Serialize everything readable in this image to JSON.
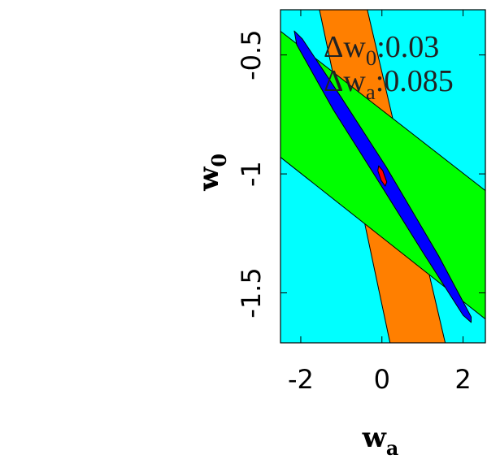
{
  "chart_data": {
    "type": "region",
    "xlabel": {
      "text": "w",
      "subscript": "a"
    },
    "ylabel": {
      "text": "w",
      "subscript": "0"
    },
    "xlim": [
      -2.5,
      2.55
    ],
    "ylim": [
      -1.71,
      -0.31
    ],
    "xticks": [
      -2,
      0,
      2
    ],
    "yticks": [
      -1.5,
      -1,
      -0.5
    ],
    "background": "#00ffff",
    "regions": [
      {
        "color": "#ff7f00",
        "points": [
          [
            -1.54,
            -0.31
          ],
          [
            -0.36,
            -0.31
          ],
          [
            1.56,
            -1.71
          ],
          [
            0.2,
            -1.71
          ]
        ]
      },
      {
        "color": "#00ff00",
        "points": [
          [
            -2.5,
            -0.4
          ],
          [
            2.55,
            -1.07
          ],
          [
            2.55,
            -1.61
          ],
          [
            -2.5,
            -0.93
          ]
        ]
      },
      {
        "color": "#0000ff",
        "points": [
          [
            -2.16,
            -0.399
          ],
          [
            -1.96,
            -0.433
          ],
          [
            -1.0,
            -0.679
          ],
          [
            0.1,
            -0.969
          ],
          [
            1.4,
            -1.345
          ],
          [
            2.2,
            -1.601
          ],
          [
            2.2,
            -1.624
          ],
          [
            2.0,
            -1.594
          ],
          [
            1.0,
            -1.327
          ],
          [
            -0.1,
            -1.027
          ],
          [
            -1.2,
            -0.73
          ],
          [
            -2.1,
            -0.457
          ]
        ]
      },
      {
        "color": "#ff0000",
        "points": [
          [
            -0.08,
            -0.966
          ],
          [
            0.02,
            -0.986
          ],
          [
            0.12,
            -1.034
          ],
          [
            0.08,
            -1.051
          ],
          [
            -0.02,
            -1.027
          ],
          [
            -0.1,
            -0.986
          ]
        ]
      }
    ],
    "annotations": [
      {
        "symbol": "Δw",
        "subscript": "0",
        "text": ":0.03"
      },
      {
        "symbol": "Δw",
        "subscript": "a",
        "text": ":0.085"
      }
    ]
  }
}
